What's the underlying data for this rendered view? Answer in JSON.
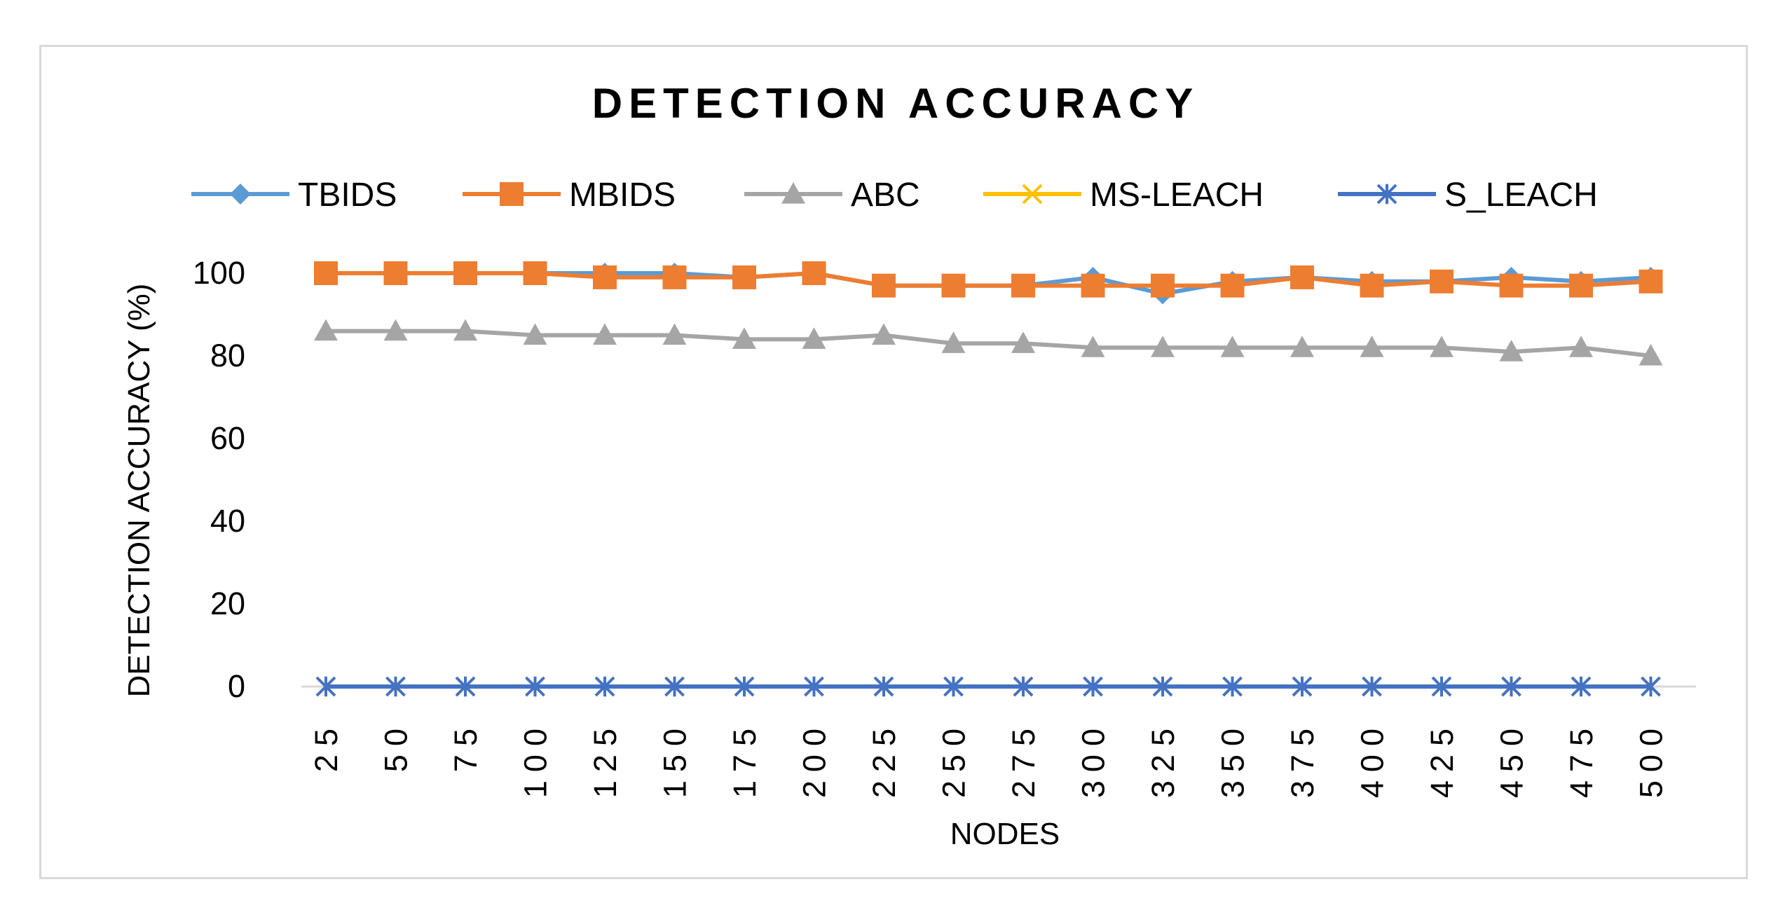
{
  "chart_data": {
    "type": "line",
    "title": "DETECTION ACCURACY",
    "xlabel": "NODES",
    "ylabel": "DETECTION ACCURACY (%)",
    "categories": [
      "25",
      "50",
      "75",
      "100",
      "125",
      "150",
      "175",
      "200",
      "225",
      "250",
      "275",
      "300",
      "325",
      "350",
      "375",
      "400",
      "425",
      "450",
      "475",
      "500"
    ],
    "ylim": [
      0,
      100
    ],
    "yticks": [
      "0",
      "20",
      "40",
      "60",
      "80",
      "100"
    ],
    "legend_position": "top",
    "grid": false,
    "series": [
      {
        "name": "TBIDS",
        "color": "#5b9bd5",
        "marker": "diamond",
        "values": [
          100,
          100,
          100,
          100,
          100,
          100,
          99,
          100,
          97,
          97,
          97,
          99,
          95,
          98,
          99,
          98,
          98,
          99,
          98,
          99
        ]
      },
      {
        "name": "MBIDS",
        "color": "#ed7d31",
        "marker": "square",
        "values": [
          100,
          100,
          100,
          100,
          99,
          99,
          99,
          100,
          97,
          97,
          97,
          97,
          97,
          97,
          99,
          97,
          98,
          97,
          97,
          98
        ]
      },
      {
        "name": "ABC",
        "color": "#a5a5a5",
        "marker": "triangle",
        "values": [
          86,
          86,
          86,
          85,
          85,
          85,
          84,
          84,
          85,
          83,
          83,
          82,
          82,
          82,
          82,
          82,
          82,
          81,
          82,
          80
        ]
      },
      {
        "name": "MS-LEACH",
        "color": "#ffc000",
        "marker": "x",
        "values": [
          0,
          0,
          0,
          0,
          0,
          0,
          0,
          0,
          0,
          0,
          0,
          0,
          0,
          0,
          0,
          0,
          0,
          0,
          0,
          0
        ]
      },
      {
        "name": "S_LEACH",
        "color": "#4472c4",
        "marker": "star",
        "values": [
          0,
          0,
          0,
          0,
          0,
          0,
          0,
          0,
          0,
          0,
          0,
          0,
          0,
          0,
          0,
          0,
          0,
          0,
          0,
          0
        ]
      }
    ]
  }
}
